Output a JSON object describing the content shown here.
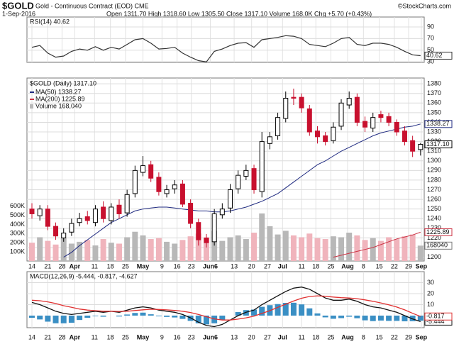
{
  "header": {
    "title": "$GOLD",
    "subtitle": "Gold - Continuous Contract (EOD) CME",
    "copyright": "©StockCharts.com",
    "date": "1-Sep-2016",
    "quote": "Open 1311.70 High 1318.60 Low 1305.50 Close 1317.10 Volume 168.0K Chg +5.70 (+0.43%)"
  },
  "chart_data": [
    {
      "type": "line",
      "title": "RSI(14) 40.62",
      "ylim": [
        29,
        107
      ],
      "yticks": [
        30,
        50,
        70,
        90
      ],
      "last_label": "40.62",
      "series": [
        {
          "color": "#333333",
          "values": [
            55,
            58,
            45,
            38,
            40,
            48,
            52,
            50,
            56,
            50,
            55,
            52,
            60,
            68,
            70,
            62,
            52,
            53,
            55,
            45,
            38,
            32,
            30,
            48,
            52,
            58,
            62,
            63,
            55,
            68,
            70,
            72,
            75,
            74,
            70,
            60,
            58,
            56,
            62,
            70,
            72,
            60,
            58,
            62,
            62,
            60,
            55,
            48,
            42,
            40.62
          ]
        }
      ]
    },
    {
      "type": "candlestick",
      "title": "$GOLD (Daily) 1317.10",
      "last_label": "1317.10",
      "up_color": "#ffffff",
      "down_color": "#c8102e",
      "ylim": [
        1196,
        1386
      ],
      "yticks": [
        1200,
        1210,
        1220,
        1230,
        1240,
        1250,
        1260,
        1270,
        1280,
        1290,
        1300,
        1310,
        1320,
        1330,
        1340,
        1350,
        1360,
        1370,
        1380
      ],
      "xticks": [
        {
          "value": 0,
          "label": "14"
        },
        {
          "value": 2,
          "label": "21"
        },
        {
          "value": 3.8,
          "label": "28"
        },
        {
          "value": 5.4,
          "label": "Apr"
        },
        {
          "value": 7.9,
          "label": "11"
        },
        {
          "value": 9.9,
          "label": "18"
        },
        {
          "value": 11.8,
          "label": "25"
        },
        {
          "value": 14,
          "label": "May"
        },
        {
          "value": 16.4,
          "label": "9"
        },
        {
          "value": 18.3,
          "label": "16"
        },
        {
          "value": 20.1,
          "label": "23"
        },
        {
          "value": 22.5,
          "label": "Jun6"
        },
        {
          "value": 25.5,
          "label": "13"
        },
        {
          "value": 27.7,
          "label": "20"
        },
        {
          "value": 29.7,
          "label": "27"
        },
        {
          "value": 31.6,
          "label": "Jul"
        },
        {
          "value": 34,
          "label": "11"
        },
        {
          "value": 35.8,
          "label": "18"
        },
        {
          "value": 37.7,
          "label": "25"
        },
        {
          "value": 39.8,
          "label": "Aug"
        },
        {
          "value": 41.8,
          "label": "8"
        },
        {
          "value": 43.8,
          "label": "15"
        },
        {
          "value": 45.7,
          "label": "22"
        },
        {
          "value": 47.5,
          "label": "29"
        },
        {
          "value": 49.1,
          "label": "Sep"
        }
      ],
      "open": [
        1250,
        1243,
        1250,
        1232,
        1220,
        1226,
        1236,
        1242,
        1236,
        1252,
        1238,
        1254,
        1246,
        1266,
        1288,
        1296,
        1283,
        1266,
        1271,
        1276,
        1256,
        1236,
        1220,
        1216,
        1244,
        1251,
        1271,
        1284,
        1292,
        1268,
        1318,
        1326,
        1344,
        1366,
        1366,
        1354,
        1331,
        1326,
        1321,
        1336,
        1358,
        1366,
        1341,
        1334,
        1348,
        1346,
        1340,
        1331,
        1321,
        1311.7
      ],
      "high": [
        1256,
        1254,
        1254,
        1236,
        1230,
        1240,
        1246,
        1248,
        1254,
        1258,
        1256,
        1260,
        1270,
        1295,
        1305,
        1300,
        1288,
        1275,
        1280,
        1280,
        1260,
        1240,
        1224,
        1250,
        1256,
        1276,
        1290,
        1296,
        1296,
        1330,
        1330,
        1350,
        1372,
        1375,
        1370,
        1358,
        1336,
        1330,
        1340,
        1364,
        1372,
        1370,
        1346,
        1350,
        1352,
        1350,
        1343,
        1336,
        1326,
        1318.6
      ],
      "low": [
        1240,
        1238,
        1228,
        1218,
        1216,
        1222,
        1232,
        1234,
        1232,
        1236,
        1234,
        1240,
        1242,
        1262,
        1284,
        1278,
        1264,
        1262,
        1266,
        1252,
        1230,
        1212,
        1210,
        1212,
        1240,
        1246,
        1266,
        1280,
        1266,
        1262,
        1312,
        1322,
        1340,
        1358,
        1350,
        1326,
        1318,
        1316,
        1318,
        1332,
        1354,
        1336,
        1330,
        1330,
        1340,
        1336,
        1326,
        1316,
        1304,
        1305.5
      ],
      "close": [
        1245,
        1250,
        1232,
        1222,
        1225,
        1235,
        1240,
        1238,
        1250,
        1240,
        1252,
        1245,
        1265,
        1290,
        1295,
        1282,
        1268,
        1270,
        1275,
        1255,
        1235,
        1218,
        1215,
        1245,
        1250,
        1270,
        1285,
        1290,
        1270,
        1320,
        1325,
        1345,
        1365,
        1365,
        1355,
        1330,
        1325,
        1320,
        1335,
        1360,
        1365,
        1340,
        1335,
        1345,
        1345,
        1340,
        1330,
        1320,
        1310,
        1317.1
      ],
      "series": [
        {
          "name": "MA(50) 1338.27",
          "last_label": "1338.27",
          "color": "#1f2a80",
          "values": [
            null,
            null,
            null,
            null,
            1200,
            1205,
            1212,
            1218,
            1224,
            1230,
            1236,
            1240,
            1244,
            1248,
            1250,
            1251,
            1252,
            1252,
            1251,
            1250,
            1249,
            1248,
            1248,
            1247,
            1247,
            1248,
            1250,
            1252,
            1255,
            1258,
            1262,
            1266,
            1272,
            1278,
            1284,
            1290,
            1296,
            1300,
            1305,
            1310,
            1314,
            1318,
            1322,
            1326,
            1329,
            1331,
            1333,
            1335,
            1336,
            1338.27
          ]
        },
        {
          "name": "MA(200) 1225.89",
          "last_label": "1225.89",
          "color": "#cc3344",
          "values": [
            null,
            null,
            null,
            null,
            null,
            null,
            null,
            null,
            null,
            null,
            null,
            null,
            null,
            null,
            null,
            null,
            null,
            null,
            null,
            null,
            null,
            null,
            null,
            null,
            null,
            null,
            null,
            null,
            null,
            null,
            null,
            null,
            null,
            null,
            null,
            null,
            null,
            null,
            1200,
            1202,
            1204,
            1206,
            1208,
            1210,
            1213,
            1216,
            1219,
            1221,
            1223,
            1225.89
          ]
        }
      ],
      "volume": {
        "name": "Volume 168,040",
        "last_label": "168040",
        "up_color": "#b8b8b8",
        "down_color": "#f0b4bc",
        "ylim": [
          0,
          2000000
        ],
        "yticks": [
          {
            "value": 100000,
            "label": "100K"
          },
          {
            "value": 200000,
            "label": "200K"
          },
          {
            "value": 300000,
            "label": "300K"
          },
          {
            "value": 400000,
            "label": "400K"
          },
          {
            "value": 500000,
            "label": "500K"
          },
          {
            "value": 600000,
            "label": "600K"
          }
        ],
        "values": [
          200000,
          260000,
          220000,
          180000,
          250000,
          190000,
          210000,
          230000,
          170000,
          240000,
          200000,
          190000,
          260000,
          320000,
          280000,
          240000,
          250000,
          210000,
          190000,
          230000,
          270000,
          300000,
          250000,
          330000,
          220000,
          260000,
          280000,
          240000,
          310000,
          520000,
          380000,
          290000,
          330000,
          280000,
          260000,
          300000,
          250000,
          240000,
          270000,
          260000,
          310000,
          280000,
          230000,
          250000,
          220000,
          260000,
          240000,
          270000,
          290000,
          168040
        ]
      }
    },
    {
      "type": "macd",
      "title": "MACD(12,26,9) -5.444, -0.817, -4.627",
      "ylim": [
        -11,
        40
      ],
      "yticks": [
        10,
        20,
        30
      ],
      "series": [
        {
          "kind": "bar",
          "color": "#3a8fc4",
          "values": [
            -2,
            -3.5,
            -5.5,
            -7,
            -7,
            -6.5,
            -4,
            -2,
            -0.5,
            -1,
            0,
            -0.8,
            1,
            2.4,
            2.7,
            1.2,
            -0.6,
            -1.2,
            -1.7,
            -3,
            -4.8,
            -7,
            -8,
            -7,
            -4,
            0,
            3.2,
            5,
            5.5,
            8,
            9.5,
            10.5,
            11.6,
            11.7,
            10.2,
            6.6,
            2,
            -1.6,
            -2.9,
            -2.3,
            -1,
            -2.4,
            -4.3,
            -5,
            -4.5,
            -4.8,
            -4.8,
            -5.2,
            -5.1,
            -4.627
          ]
        },
        {
          "kind": "line",
          "color": "#111111",
          "last_label": "-5.444",
          "values": [
            12,
            10,
            7,
            4,
            2,
            1,
            2,
            3,
            4,
            3,
            4,
            3,
            5,
            7,
            8,
            7,
            5,
            4,
            3,
            1,
            -2,
            -6,
            -9,
            -10,
            -8,
            -4,
            0,
            3,
            5,
            10,
            14,
            18,
            22,
            25,
            26,
            24,
            20,
            16,
            14,
            14,
            15,
            13,
            10,
            8,
            7,
            5,
            3,
            0,
            -3,
            -5.444
          ]
        },
        {
          "kind": "line",
          "color": "#e03030",
          "last_label": "-0.817",
          "values": [
            14,
            13.5,
            12.5,
            11,
            9,
            7.5,
            6,
            5,
            4.5,
            4,
            4,
            3.8,
            4,
            4.6,
            5.3,
            5.8,
            5.6,
            5.2,
            4.7,
            4,
            2.8,
            1,
            -1,
            -3,
            -4,
            -4,
            -3.2,
            -2,
            -0.5,
            2,
            4.5,
            7.5,
            10.4,
            13.3,
            15.8,
            17.4,
            18,
            17.6,
            16.9,
            16.3,
            16,
            15.4,
            14.3,
            13,
            11.5,
            9.8,
            7.8,
            5.2,
            2.1,
            -0.817
          ]
        }
      ]
    }
  ]
}
